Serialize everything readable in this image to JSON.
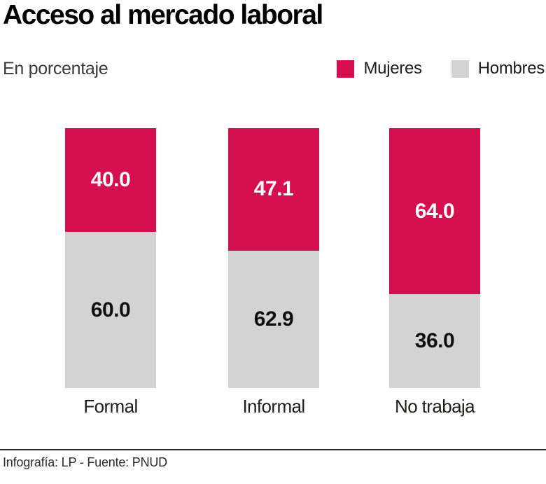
{
  "header": {
    "title": "Acceso al mercado laboral",
    "subtitle": "En porcentaje"
  },
  "legend": [
    {
      "label": "Mujeres",
      "color": "#d60e50"
    },
    {
      "label": "Hombres",
      "color": "#d3d3d3"
    }
  ],
  "chart_data": {
    "type": "bar",
    "stacked": true,
    "orientation": "vertical",
    "title": "Acceso al mercado laboral",
    "subtitle": "En porcentaje",
    "unit": "percent",
    "categories": [
      "Formal",
      "Informal",
      "No trabaja"
    ],
    "series": [
      {
        "name": "Mujeres",
        "color": "#d60e50",
        "label_color": "#ffffff",
        "values": [
          40.0,
          47.1,
          64.0
        ]
      },
      {
        "name": "Hombres",
        "color": "#d3d3d3",
        "label_color": "#101010",
        "values": [
          60.0,
          62.9,
          36.0
        ]
      }
    ],
    "grid": false,
    "legend_position": "top-right",
    "value_labels": "inside-center"
  },
  "footer": {
    "text": "Infografía: LP - Fuente: PNUD"
  }
}
